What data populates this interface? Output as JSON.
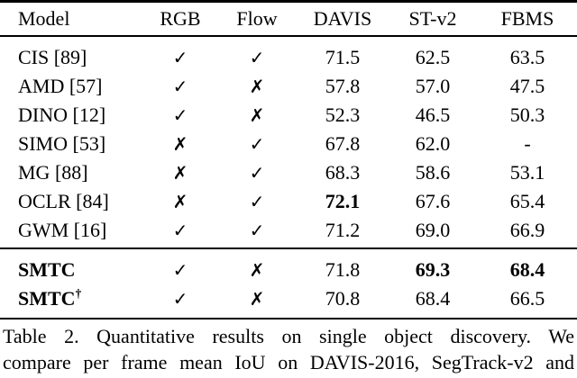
{
  "header": {
    "model": "Model",
    "rgb": "RGB",
    "flow": "Flow",
    "davis": "DAVIS",
    "stv2": "ST-v2",
    "fbms": "FBMS"
  },
  "rows": [
    {
      "model": "CIS [89]",
      "rgb": "✓",
      "flow": "✓",
      "davis": "71.5",
      "stv2": "62.5",
      "fbms": "63.5"
    },
    {
      "model": "AMD [57]",
      "rgb": "✓",
      "flow": "✗",
      "davis": "57.8",
      "stv2": "57.0",
      "fbms": "47.5"
    },
    {
      "model": "DINO [12]",
      "rgb": "✓",
      "flow": "✗",
      "davis": "52.3",
      "stv2": "46.5",
      "fbms": "50.3"
    },
    {
      "model": "SIMO [53]",
      "rgb": "✗",
      "flow": "✓",
      "davis": "67.8",
      "stv2": "62.0",
      "fbms": "-"
    },
    {
      "model": "MG [88]",
      "rgb": "✗",
      "flow": "✓",
      "davis": "68.3",
      "stv2": "58.6",
      "fbms": "53.1"
    },
    {
      "model": "OCLR [84]",
      "rgb": "✗",
      "flow": "✓",
      "davis": "72.1",
      "stv2": "67.6",
      "fbms": "65.4"
    },
    {
      "model": "GWM [16]",
      "rgb": "✓",
      "flow": "✓",
      "davis": "71.2",
      "stv2": "69.0",
      "fbms": "66.9"
    }
  ],
  "ours": [
    {
      "model": "SMTC",
      "sup": "",
      "rgb": "✓",
      "flow": "✗",
      "davis": "71.8",
      "stv2": "69.3",
      "fbms": "68.4"
    },
    {
      "model": "SMTC",
      "sup": "†",
      "rgb": "✓",
      "flow": "✗",
      "davis": "70.8",
      "stv2": "68.4",
      "fbms": "66.5"
    }
  ],
  "caption": {
    "line1": "Table 2. Quantitative results on single object discovery. We",
    "line2": "compare per frame mean IoU on DAVIS-2016, SegTrack-v2 and"
  }
}
